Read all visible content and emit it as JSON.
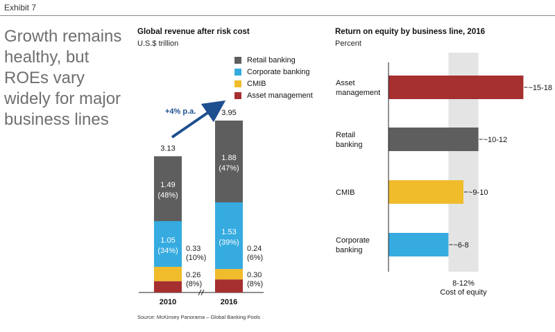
{
  "header": {
    "exhibit_label": "Exhibit 7",
    "headline_lines": [
      "Growth remains",
      "healthy, but",
      "ROEs vary",
      "widely for major",
      "business lines"
    ]
  },
  "colors": {
    "retail": "#5e5e5e",
    "corporate": "#36abe0",
    "cmib": "#f0bc2c",
    "asset": "#a62f30",
    "cost_band": "#e4e4e4",
    "arrow": "#1e4f8e"
  },
  "source": "Source:   McKinsey Panorama – Global Banking Pools",
  "chart_data": [
    {
      "type": "bar",
      "stacked": true,
      "title": "Global revenue after risk cost",
      "subtitle": "U.S.$ trillion",
      "categories": [
        "2010",
        "2016"
      ],
      "totals": [
        "3.13",
        "3.95"
      ],
      "growth_label": "+4% p.a.",
      "series": [
        {
          "name": "Asset management",
          "color_key": "asset",
          "values": [
            0.26,
            0.3
          ],
          "labels": [
            "0.26\n(8%)",
            "0.30\n(8%)"
          ],
          "label_side": "right"
        },
        {
          "name": "CMIB",
          "color_key": "cmib",
          "values": [
            0.33,
            0.24
          ],
          "labels": [
            "0.33\n(10%)",
            "0.24\n(6%)"
          ],
          "label_side": "right"
        },
        {
          "name": "Corporate banking",
          "color_key": "corporate",
          "values": [
            1.05,
            1.53
          ],
          "labels": [
            "1.05\n(34%)",
            "1.53\n(39%)"
          ],
          "label_side": "inside"
        },
        {
          "name": "Retail banking",
          "color_key": "retail",
          "values": [
            1.49,
            1.88
          ],
          "labels": [
            "1.49\n(48%)",
            "1.88\n(47%)"
          ],
          "label_side": "inside"
        }
      ],
      "legend": [
        "Retail banking",
        "Corporate banking",
        "CMIB",
        "Asset management"
      ],
      "ylim": [
        0,
        4.2
      ]
    },
    {
      "type": "bar",
      "orientation": "horizontal",
      "title": "Return on equity by business line, 2016",
      "subtitle": "Percent",
      "categories": [
        "Asset\nmanagement",
        "Retail\nbanking",
        "CMIB",
        "Corporate\nbanking"
      ],
      "color_keys": [
        "asset",
        "retail",
        "cmib",
        "corporate"
      ],
      "ranges": [
        [
          15,
          18
        ],
        [
          10,
          12
        ],
        [
          9,
          10
        ],
        [
          6,
          8
        ]
      ],
      "value_labels": [
        "~15-18",
        "~10-12",
        "~9-10",
        "~6-8"
      ],
      "cost_of_equity_band": [
        8,
        12
      ],
      "cost_of_equity_label": "8-12%\nCost of  equity",
      "xlim": [
        0,
        19
      ]
    }
  ]
}
